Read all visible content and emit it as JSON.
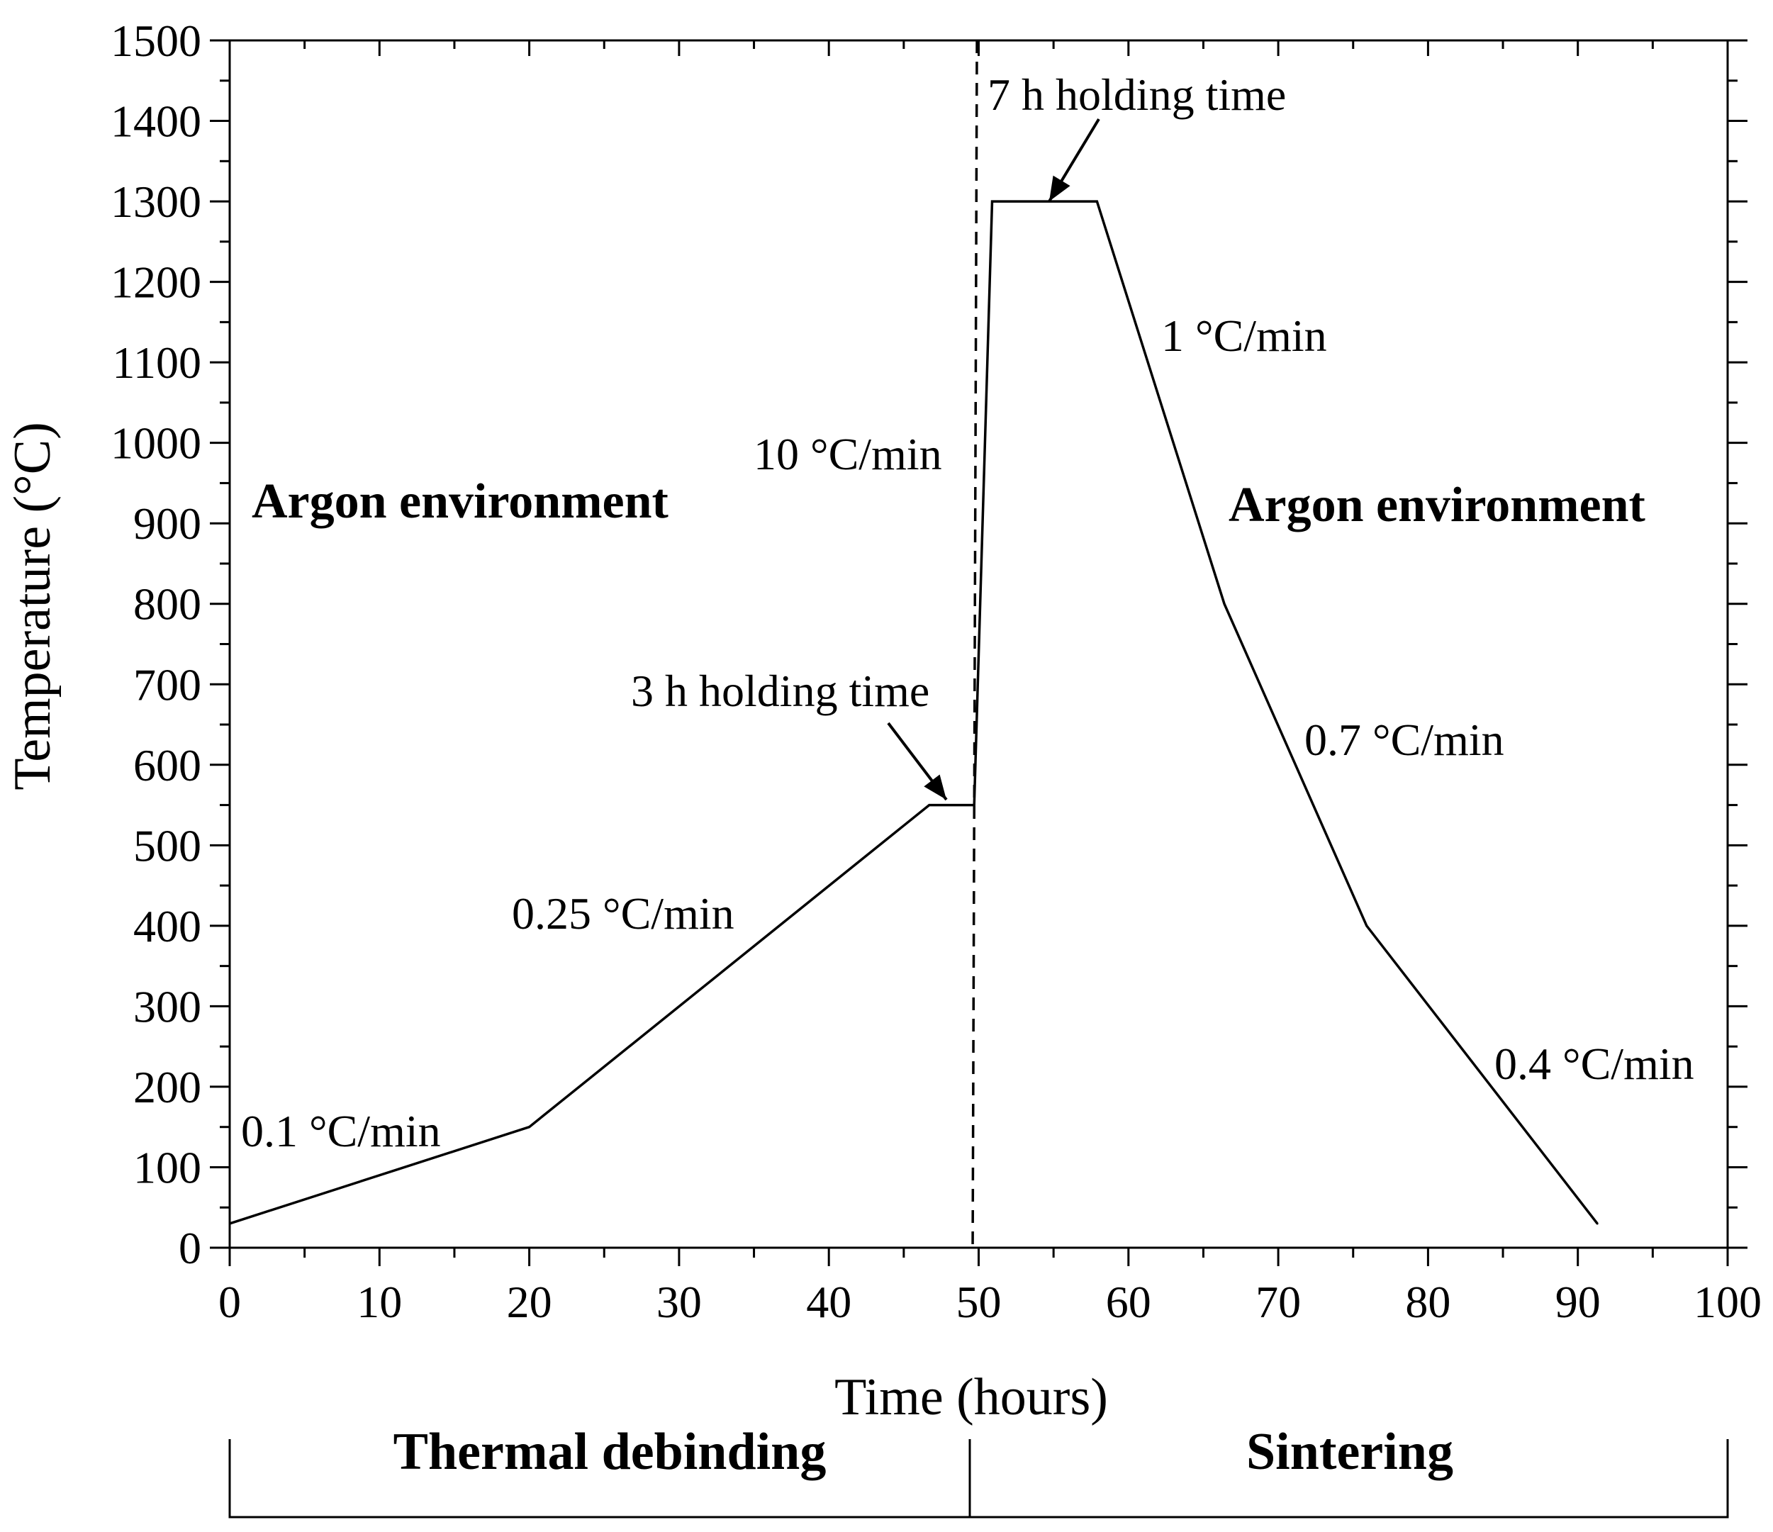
{
  "chart_data": {
    "type": "line",
    "title": "",
    "xlabel": "Time (hours)",
    "ylabel": "Temperature (°C)",
    "xlim": [
      0,
      100
    ],
    "ylim": [
      0,
      1500
    ],
    "xticks": [
      0,
      10,
      20,
      30,
      40,
      50,
      60,
      70,
      80,
      90,
      100
    ],
    "xtick_labels": [
      "0",
      "10",
      "20",
      "30",
      "40",
      "50",
      "60",
      "70",
      "80",
      "90",
      "100"
    ],
    "yticks": [
      0,
      100,
      200,
      300,
      400,
      500,
      600,
      700,
      800,
      900,
      1000,
      1100,
      1200,
      1300,
      1400,
      1500
    ],
    "ytick_labels": [
      "0",
      "100",
      "200",
      "300",
      "400",
      "500",
      "600",
      "700",
      "800",
      "900",
      "1000",
      "1100",
      "1200",
      "1300",
      "1400",
      "1500"
    ],
    "grid": false,
    "series": [
      {
        "name": "Temperature profile",
        "x": [
          0,
          20,
          46.7,
          49.7,
          50.9,
          57.9,
          66.4,
          75.9,
          91.3
        ],
        "y": [
          30,
          150,
          550,
          550,
          1300,
          1300,
          800,
          400,
          30
        ]
      }
    ],
    "divider": {
      "x": 49.6,
      "style": "dashed"
    },
    "annotations": {
      "rate_01": "0.1 °C/min",
      "rate_025": "0.25 °C/min",
      "hold_3h": "3 h holding time",
      "rate_10": "10 °C/min",
      "hold_7h": "7 h holding time",
      "rate_1": "1 °C/min",
      "rate_07": "0.7 °C/min",
      "rate_04": "0.4 °C/min",
      "argon_left": "Argon environment",
      "argon_right": "Argon environment"
    },
    "stages": {
      "debinding": "Thermal debinding",
      "sintering": "Sintering"
    }
  }
}
